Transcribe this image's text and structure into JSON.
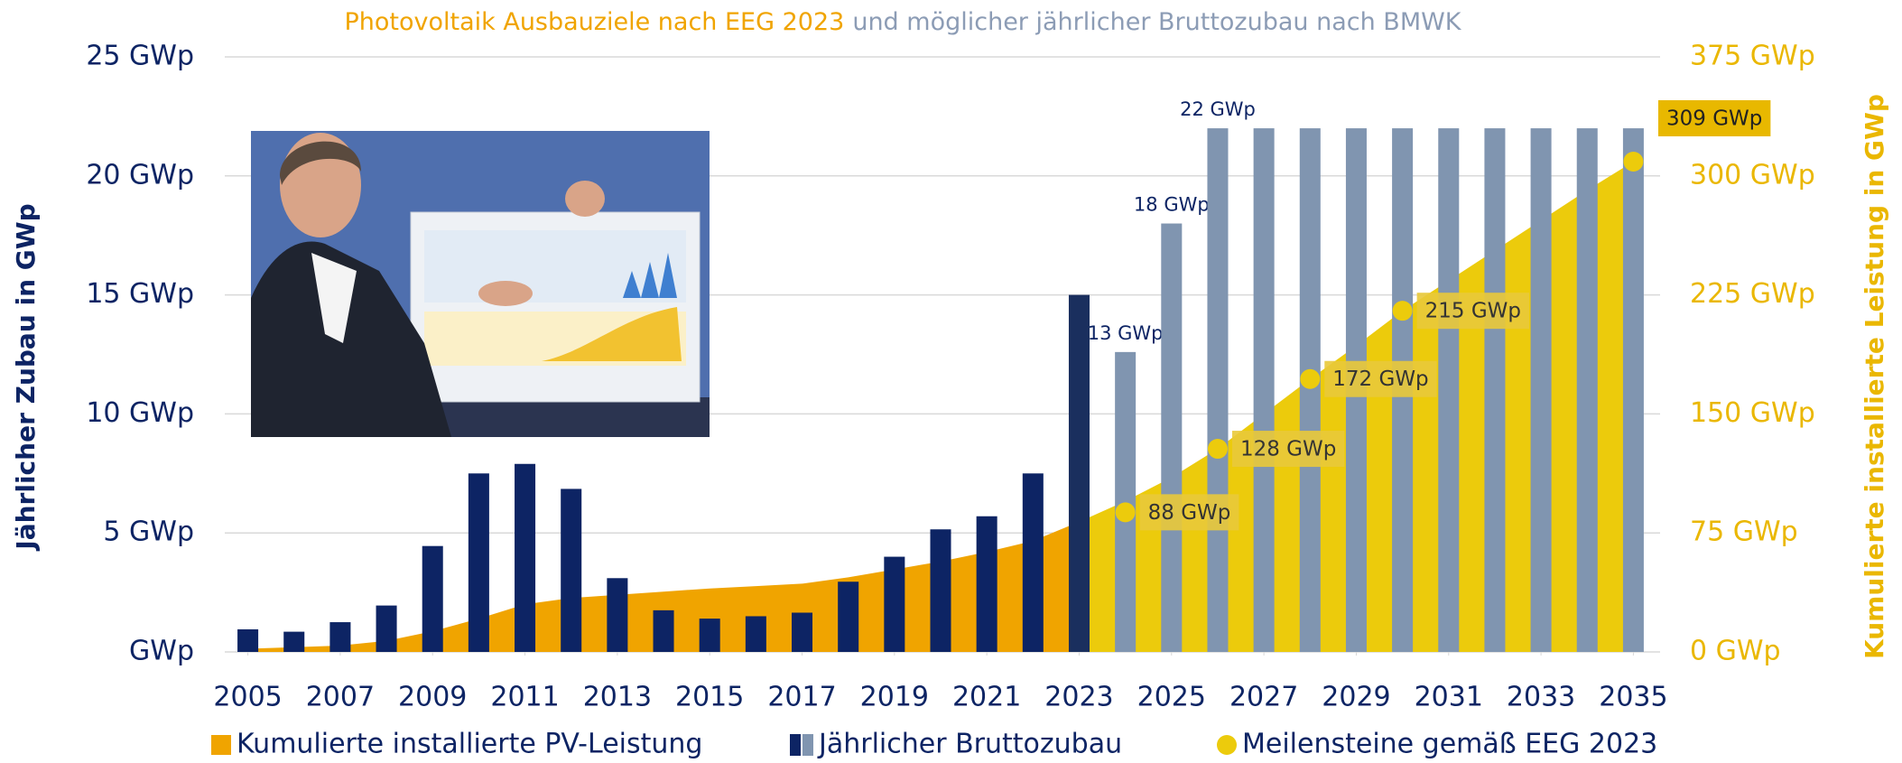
{
  "chart_data": {
    "type": "combo",
    "title": {
      "parts": [
        {
          "text": "Photovoltaik Ausbauziele nach EEG 2023",
          "color": "#f0a400"
        },
        {
          "text": "und möglicher jährlicher Bruttozubau nach BMWK",
          "color": "#8c9cb5"
        }
      ]
    },
    "y_label": "Jährlicher Zubau in GWp",
    "y2_label": "Kumulierte installierte Leistung in GWp",
    "xlim": [
      2004.5,
      2035.5
    ],
    "xticks": [
      2005,
      2007,
      2009,
      2011,
      2013,
      2015,
      2017,
      2019,
      2021,
      2023,
      2025,
      2027,
      2029,
      2031,
      2033,
      2035
    ],
    "ylim": [
      0,
      25
    ],
    "yticks": [
      {
        "value": 0,
        "label": "GWp"
      },
      {
        "value": 5,
        "label": "5 GWp"
      },
      {
        "value": 10,
        "label": "10 GWp"
      },
      {
        "value": 15,
        "label": "15 GWp"
      },
      {
        "value": 20,
        "label": "20 GWp"
      },
      {
        "value": 25,
        "label": "25 GWp"
      }
    ],
    "y2lim": [
      0,
      375
    ],
    "y2ticks": [
      {
        "value": 0,
        "label": "0 GWp"
      },
      {
        "value": 75,
        "label": "75 GWp"
      },
      {
        "value": 150,
        "label": "150 GWp"
      },
      {
        "value": 225,
        "label": "225 GWp"
      },
      {
        "value": 300,
        "label": "300 GWp"
      },
      {
        "value": 375,
        "label": "375 GWp"
      }
    ],
    "grid": true,
    "x": [
      2005,
      2006,
      2007,
      2008,
      2009,
      2010,
      2011,
      2012,
      2013,
      2014,
      2015,
      2016,
      2017,
      2018,
      2019,
      2020,
      2021,
      2022,
      2023,
      2024,
      2025,
      2026,
      2027,
      2028,
      2029,
      2030,
      2031,
      2032,
      2033,
      2034,
      2035
    ],
    "series": [
      {
        "name": "Kumulierte installierte PV-Leistung",
        "type": "area",
        "axis": "y2",
        "colors": [
          "#f0a400",
          "#f0a400",
          "#f0a400",
          "#f0a400",
          "#f0a400",
          "#f0a400",
          "#f0a400",
          "#f0a400",
          "#f0a400",
          "#f0a400",
          "#f0a400",
          "#f0a400",
          "#f0a400",
          "#f0a400",
          "#f0a400",
          "#f0a400",
          "#f0a400",
          "#f0a400",
          "#f0a400",
          "#eccb0c",
          "#eccb0c",
          "#eccb0c",
          "#eccb0c",
          "#eccb0c",
          "#eccb0c",
          "#eccb0c",
          "#eccb0c",
          "#eccb0c",
          "#eccb0c",
          "#eccb0c",
          "#eccb0c"
        ],
        "values": [
          2,
          3,
          4,
          7,
          13,
          21,
          30,
          34,
          36,
          38,
          40,
          41.5,
          43,
          47,
          52,
          57,
          63,
          70,
          82,
          95,
          110,
          128,
          150,
          172,
          193,
          215,
          234,
          253,
          272,
          291,
          309
        ]
      },
      {
        "name": "Jährlicher Bruttozubau",
        "type": "bar",
        "colors": [
          "#0d2464",
          "#0d2464",
          "#0d2464",
          "#0d2464",
          "#0d2464",
          "#0d2464",
          "#0d2464",
          "#0d2464",
          "#0d2464",
          "#0d2464",
          "#0d2464",
          "#0d2464",
          "#0d2464",
          "#0d2464",
          "#0d2464",
          "#0d2464",
          "#0d2464",
          "#0d2464",
          "#1a2f5e",
          "#8095b0",
          "#8095b0",
          "#8095b0",
          "#8095b0",
          "#8095b0",
          "#8095b0",
          "#8095b0",
          "#8095b0",
          "#8095b0",
          "#8095b0",
          "#8095b0",
          "#8095b0"
        ],
        "values": [
          0.95,
          0.85,
          1.25,
          1.95,
          4.45,
          7.5,
          7.9,
          6.85,
          3.1,
          1.75,
          1.4,
          1.5,
          1.65,
          2.95,
          4.0,
          5.15,
          5.7,
          7.5,
          15.0,
          12.6,
          18,
          22,
          22,
          22,
          22,
          22,
          22,
          22,
          22,
          22,
          22
        ],
        "value_labels": [
          null,
          null,
          null,
          null,
          null,
          null,
          null,
          null,
          null,
          null,
          null,
          null,
          null,
          null,
          null,
          null,
          null,
          null,
          null,
          "13 GWp",
          "18 GWp",
          "22 GWp",
          null,
          null,
          null,
          null,
          null,
          null,
          null,
          null,
          null
        ]
      },
      {
        "name": "Meilensteine gemäß  EEG 2023",
        "type": "scatter",
        "axis": "y2",
        "color": "#eccb0c",
        "x": [
          2024,
          2026,
          2028,
          2030,
          2035
        ],
        "values": [
          88,
          128,
          172,
          215,
          309
        ],
        "value_labels": [
          "88 GWp",
          "128 GWp",
          "172 GWp",
          "215 GWp",
          "309 GWp"
        ]
      }
    ]
  }
}
